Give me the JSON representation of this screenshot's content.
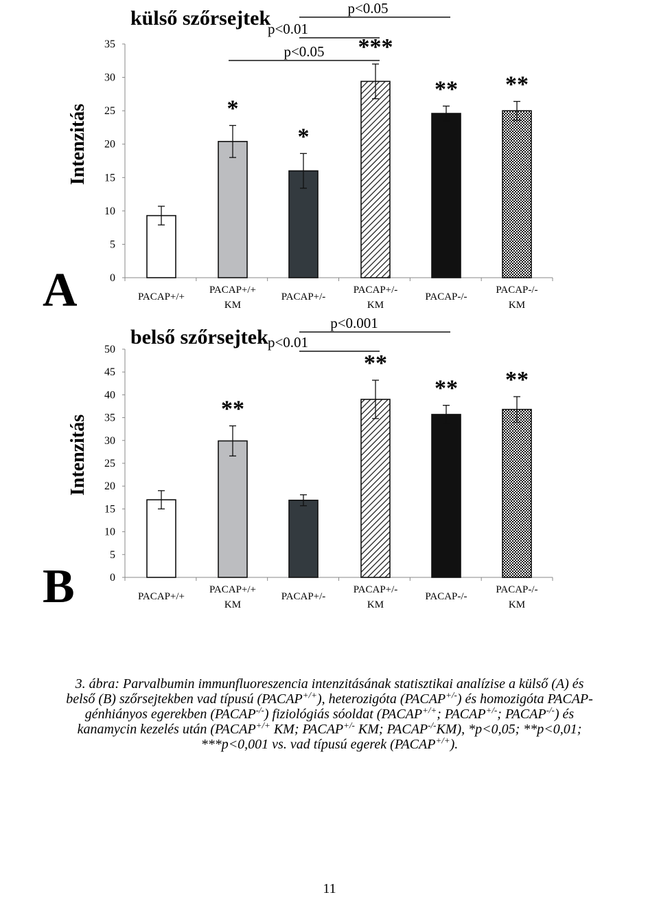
{
  "chart_data": [
    {
      "type": "bar",
      "panel": "A",
      "title": "külső szőrsejtek",
      "ylabel": "Intenzitás",
      "ylim": [
        0,
        35
      ],
      "yticks": [
        0,
        5,
        10,
        15,
        20,
        25,
        30,
        35
      ],
      "categories": [
        [
          "PACAP+/+"
        ],
        [
          "PACAP+/+",
          "KM"
        ],
        [
          "PACAP+/-"
        ],
        [
          "PACAP+/-",
          "KM"
        ],
        [
          "PACAP-/-"
        ],
        [
          "PACAP-/-",
          "KM"
        ]
      ],
      "values": [
        9.3,
        20.4,
        16.0,
        29.4,
        24.6,
        25.0
      ],
      "errors": [
        1.4,
        2.4,
        2.6,
        2.6,
        1.1,
        1.4
      ],
      "fills": [
        "white",
        "#bcbdc0",
        "#333a3f",
        "hatch",
        "#111111",
        "checker"
      ],
      "significance": [
        "",
        "*",
        "*",
        "***",
        "**",
        "**"
      ],
      "brackets": [
        {
          "label": "p<0.05",
          "from": 1,
          "to": 3
        },
        {
          "label": "p<0.01",
          "from": 2,
          "to": 3
        },
        {
          "label": "p<0.05",
          "from": 2,
          "to": 4
        }
      ]
    },
    {
      "type": "bar",
      "panel": "B",
      "title": "belső szőrsejtek",
      "ylabel": "Intenzitás",
      "ylim": [
        0,
        50
      ],
      "yticks": [
        0,
        5,
        10,
        15,
        20,
        25,
        30,
        35,
        40,
        45,
        50
      ],
      "categories": [
        [
          "PACAP+/+"
        ],
        [
          "PACAP+/+",
          "KM"
        ],
        [
          "PACAP+/-"
        ],
        [
          "PACAP+/-",
          "KM"
        ],
        [
          "PACAP-/-"
        ],
        [
          "PACAP-/-",
          "KM"
        ]
      ],
      "values": [
        17.0,
        29.9,
        16.9,
        39.0,
        35.7,
        36.8
      ],
      "errors": [
        2.0,
        3.3,
        1.2,
        4.2,
        2.0,
        2.8
      ],
      "fills": [
        "white",
        "#bcbdc0",
        "#333a3f",
        "hatch",
        "#111111",
        "checker"
      ],
      "significance": [
        "",
        "**",
        "",
        "**",
        "**",
        "**"
      ],
      "brackets": [
        {
          "label": "p<0.01",
          "from": 2,
          "to": 3
        },
        {
          "label": "p<0.001",
          "from": 2,
          "to": 4
        }
      ]
    }
  ],
  "caption": {
    "lines": [
      [
        {
          "t": "3. ábra: Parvalbumin immunfluoreszencia intenzitásának statisztikai analízise a külső (A) és"
        }
      ],
      [
        {
          "t": "belső (B) szőrsejtekben vad típusú (PACAP"
        },
        {
          "t": "+/+",
          "sup": true
        },
        {
          "t": "), heterozigóta (PACAP"
        },
        {
          "t": "+/-",
          "sup": true
        },
        {
          "t": ") és homozigóta PACAP-"
        }
      ],
      [
        {
          "t": "génhiányos egerekben (PACAP"
        },
        {
          "t": "-/-",
          "sup": true
        },
        {
          "t": ") fiziológiás sóoldat (PACAP"
        },
        {
          "t": "+/+",
          "sup": true
        },
        {
          "t": "; PACAP"
        },
        {
          "t": "+/-",
          "sup": true
        },
        {
          "t": "; PACAP"
        },
        {
          "t": "-/-",
          "sup": true
        },
        {
          "t": ") és"
        }
      ],
      [
        {
          "t": "kanamycin kezelés után (PACAP"
        },
        {
          "t": "+/+",
          "sup": true
        },
        {
          "t": " KM; PACAP"
        },
        {
          "t": "+/-",
          "sup": true
        },
        {
          "t": " KM; PACAP"
        },
        {
          "t": "-/-",
          "sup": true
        },
        {
          "t": "KM), *p<0,05; **p<0,01;"
        }
      ],
      [
        {
          "t": "***p<0,001 vs. vad típusú egerek (PACAP"
        },
        {
          "t": "+/+",
          "sup": true
        },
        {
          "t": ")."
        }
      ]
    ]
  },
  "page_number": "11"
}
